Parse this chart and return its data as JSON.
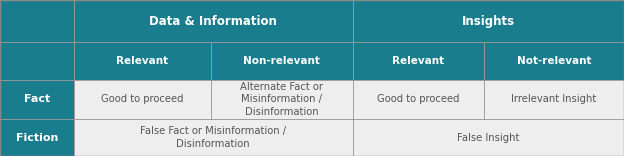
{
  "teal": "#1a7d8e",
  "white": "#ffffff",
  "dark_text": "#555555",
  "cell_bg": "#eeeeee",
  "border_color": "#999999",
  "header1_text": "Data & Information",
  "header2_text": "Insights",
  "subheader": [
    "Relevant",
    "Non-relevant",
    "Relevant",
    "Not-relevant"
  ],
  "row_labels": [
    "Fact",
    "Fiction"
  ],
  "fact_cells": [
    "Good to proceed",
    "Alternate Fact or\nMisinformation /\nDisinformation",
    "Good to proceed",
    "Irrelevant Insight"
  ],
  "fiction_cells": [
    "False Fact or Misinformation /\nDisinformation",
    "False Insight"
  ],
  "figsize": [
    6.24,
    1.56
  ],
  "dpi": 100,
  "cols": [
    0.0,
    0.118,
    0.338,
    0.565,
    0.775,
    1.0
  ],
  "rows": [
    1.0,
    0.73,
    0.49,
    0.235,
    0.0
  ]
}
